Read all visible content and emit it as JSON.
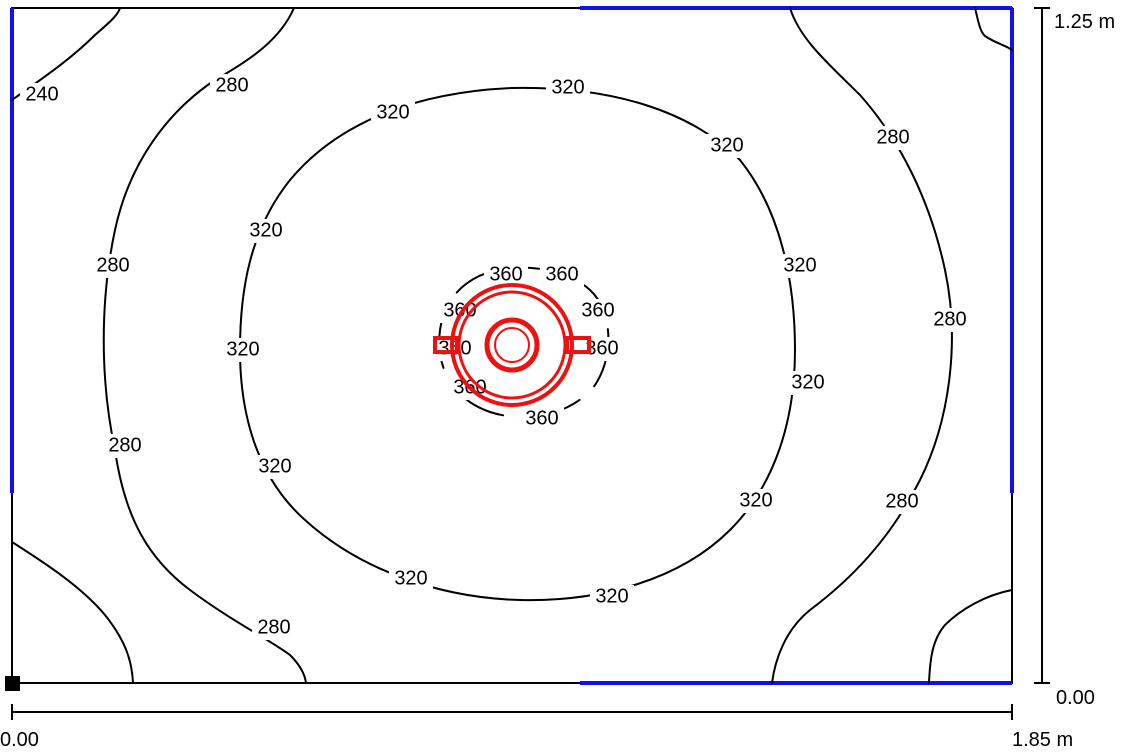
{
  "room": {
    "width_m": 1.85,
    "depth_m": 1.25,
    "x_start_label": "0.00",
    "x_end_label": "1.85 m",
    "y_start_label": "0.00",
    "y_end_label": "1.25 m"
  },
  "contour_levels": [
    240,
    280,
    320,
    360
  ],
  "contour_labels": {
    "l240": "240",
    "l280": "280",
    "l320": "320",
    "l360": "360"
  },
  "colors": {
    "contour": "#000000",
    "wall_highlight": "#1010ee",
    "luminaire": "#ee1111",
    "origin_marker": "#000000"
  },
  "luminaire": {
    "icon": "round-luminaire-icon"
  }
}
